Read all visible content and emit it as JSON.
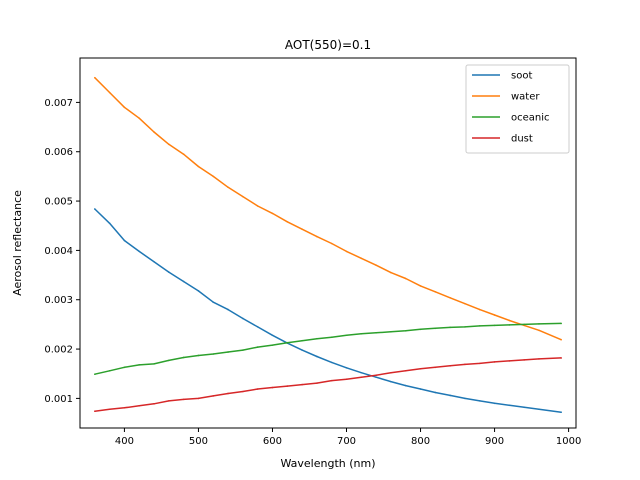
{
  "chart_data": {
    "type": "line",
    "title": "AOT(550)=0.1",
    "xlabel": "Wavelength (nm)",
    "ylabel": "Aerosol reflectance",
    "xlim": [
      340,
      1010
    ],
    "ylim": [
      0.0004,
      0.0079
    ],
    "xticks": [
      400,
      500,
      600,
      700,
      800,
      900,
      1000
    ],
    "yticks": [
      0.001,
      0.002,
      0.003,
      0.004,
      0.005,
      0.006,
      0.007
    ],
    "legend_position": "top-right",
    "x": [
      360,
      380,
      400,
      420,
      440,
      460,
      480,
      500,
      520,
      540,
      560,
      580,
      600,
      620,
      640,
      660,
      680,
      700,
      720,
      740,
      760,
      780,
      800,
      820,
      840,
      860,
      880,
      900,
      920,
      940,
      960,
      990
    ],
    "series": [
      {
        "name": "soot",
        "color": "#1f77b4",
        "values": [
          0.00484,
          0.00455,
          0.0042,
          0.00398,
          0.00377,
          0.00356,
          0.00337,
          0.00318,
          0.00295,
          0.0028,
          0.00262,
          0.00245,
          0.00228,
          0.00212,
          0.00198,
          0.00185,
          0.00173,
          0.00162,
          0.00152,
          0.00143,
          0.00134,
          0.00126,
          0.00119,
          0.00112,
          0.00106,
          0.001,
          0.00095,
          0.0009,
          0.00086,
          0.00082,
          0.00078,
          0.00072
        ]
      },
      {
        "name": "water",
        "color": "#ff7f0e",
        "values": [
          0.0075,
          0.0072,
          0.0069,
          0.00668,
          0.0064,
          0.00615,
          0.00595,
          0.0057,
          0.0055,
          0.00528,
          0.00509,
          0.0049,
          0.00475,
          0.00458,
          0.00443,
          0.00428,
          0.00414,
          0.00398,
          0.00384,
          0.0037,
          0.00355,
          0.00343,
          0.00328,
          0.00316,
          0.00304,
          0.00292,
          0.0028,
          0.00269,
          0.00258,
          0.00248,
          0.00238,
          0.00219
        ]
      },
      {
        "name": "oceanic",
        "color": "#2ca02c",
        "values": [
          0.00149,
          0.00156,
          0.00163,
          0.00168,
          0.0017,
          0.00177,
          0.00183,
          0.00187,
          0.0019,
          0.00194,
          0.00198,
          0.00204,
          0.00208,
          0.00213,
          0.00217,
          0.00221,
          0.00224,
          0.00228,
          0.00231,
          0.00233,
          0.00235,
          0.00237,
          0.0024,
          0.00242,
          0.00244,
          0.00245,
          0.00247,
          0.00248,
          0.00249,
          0.0025,
          0.00251,
          0.00252
        ]
      },
      {
        "name": "dust",
        "color": "#d62728",
        "values": [
          0.00074,
          0.00078,
          0.00081,
          0.00085,
          0.00089,
          0.00095,
          0.00098,
          0.001,
          0.00105,
          0.0011,
          0.00114,
          0.00119,
          0.00122,
          0.00125,
          0.00128,
          0.00131,
          0.00136,
          0.00139,
          0.00143,
          0.00147,
          0.00152,
          0.00156,
          0.0016,
          0.00163,
          0.00166,
          0.00169,
          0.00171,
          0.00174,
          0.00176,
          0.00178,
          0.0018,
          0.00182
        ]
      }
    ]
  }
}
